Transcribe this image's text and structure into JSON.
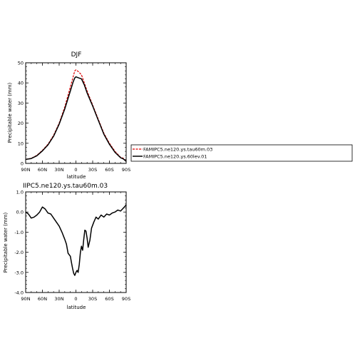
{
  "chart_data": [
    {
      "type": "line",
      "title": "DJF",
      "xlabel": "latitude",
      "ylabel": "Precipitable water (mm)",
      "xlim": [
        -90,
        90
      ],
      "ylim": [
        0,
        50
      ],
      "xticks": [
        "90N",
        "60N",
        "30N",
        "0",
        "30S",
        "60S",
        "90S"
      ],
      "yticks": [
        "0",
        "10",
        "20",
        "30",
        "40",
        "50"
      ],
      "legend_placement": "right",
      "series": [
        {
          "name": "FAMIPC5.ne120.ys.tau60m.03",
          "color": "#dd0000",
          "dash": true,
          "x": [
            -90,
            -80,
            -70,
            -60,
            -50,
            -40,
            -30,
            -20,
            -10,
            -5,
            -2,
            0,
            5,
            10,
            15,
            20,
            30,
            40,
            50,
            60,
            70,
            80,
            85,
            90
          ],
          "values": [
            2,
            2.5,
            4,
            6.5,
            9.5,
            14,
            20,
            28,
            38,
            43,
            46,
            46.5,
            45.5,
            44,
            40,
            36,
            29,
            22,
            15,
            10,
            6,
            3,
            2.5,
            1
          ]
        },
        {
          "name": "FAMIPC5.ne120.ys.60lev.01",
          "color": "#000000",
          "dash": false,
          "x": [
            -90,
            -80,
            -70,
            -60,
            -50,
            -40,
            -30,
            -20,
            -10,
            -5,
            -2,
            0,
            5,
            10,
            15,
            20,
            30,
            40,
            50,
            60,
            70,
            80,
            85,
            90
          ],
          "values": [
            2,
            2.4,
            3.8,
            6.2,
            9.2,
            13.5,
            19.5,
            27,
            36,
            40.5,
            42.5,
            43,
            42.5,
            42,
            39,
            35,
            28.5,
            21.5,
            14.5,
            9.5,
            5.5,
            2.8,
            2.2,
            1
          ]
        }
      ]
    },
    {
      "type": "line",
      "title": "IIPC5.ne120.ys.tau60m.03",
      "xlabel": "latitude",
      "ylabel": "Precipitable water (mm)",
      "xlim": [
        -90,
        90
      ],
      "ylim": [
        -4,
        1
      ],
      "xticks": [
        "90N",
        "60N",
        "30N",
        "0",
        "30S",
        "60S",
        "90S"
      ],
      "yticks": [
        "-4.0",
        "-3.0",
        "-2.0",
        "-1.0",
        "0.0",
        "1.0"
      ],
      "series": [
        {
          "name": "",
          "color": "#000000",
          "dash": false,
          "x": [
            -90,
            -85,
            -80,
            -75,
            -70,
            -65,
            -60,
            -55,
            -50,
            -45,
            -40,
            -35,
            -30,
            -25,
            -20,
            -17,
            -14,
            -10,
            -8,
            -6,
            -4,
            -2,
            0,
            2,
            4,
            6,
            8,
            10,
            12,
            14,
            16,
            18,
            20,
            22,
            25,
            28,
            32,
            36,
            40,
            45,
            50,
            55,
            60,
            65,
            70,
            75,
            80,
            85,
            90
          ],
          "values": [
            0,
            -0.1,
            -0.3,
            -0.25,
            -0.15,
            0,
            0.25,
            0.15,
            -0.05,
            -0.1,
            -0.3,
            -0.5,
            -0.7,
            -1.0,
            -1.35,
            -1.6,
            -2.05,
            -2.2,
            -2.5,
            -2.8,
            -3.05,
            -3.15,
            -3.0,
            -2.9,
            -3.0,
            -2.6,
            -2.0,
            -1.7,
            -1.9,
            -1.35,
            -0.9,
            -0.95,
            -1.3,
            -1.75,
            -1.4,
            -0.8,
            -0.5,
            -0.25,
            -0.35,
            -0.15,
            -0.25,
            -0.1,
            -0.15,
            -0.05,
            0,
            0.1,
            0.05,
            0.2,
            0.35
          ]
        }
      ]
    }
  ]
}
